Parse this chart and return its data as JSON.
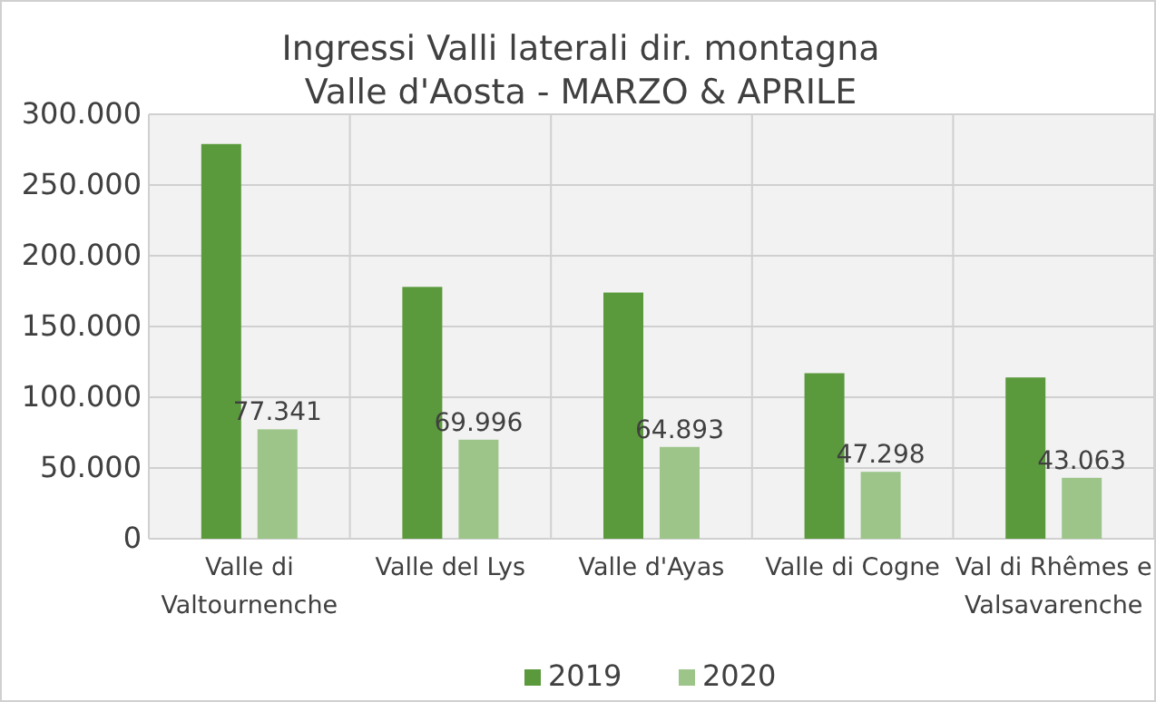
{
  "chart_data": {
    "type": "bar",
    "title": "Ingressi Valli laterali dir. montagna\nValle d'Aosta - MARZO & APRILE",
    "categories": [
      "Valle di\nValtournenche",
      "Valle del Lys",
      "Valle d'Ayas",
      "Valle di Cogne",
      "Val di Rhêmes e\nValsavarenche"
    ],
    "series": [
      {
        "name": "2019",
        "color": "#5b9a3c",
        "values": [
          279000,
          178000,
          174000,
          117000,
          114000
        ]
      },
      {
        "name": "2020",
        "color": "#9dc58a",
        "values": [
          77341,
          69996,
          64893,
          47298,
          43063
        ],
        "value_labels": [
          "77.341",
          "69.996",
          "64.893",
          "47.298",
          "43.063"
        ]
      }
    ],
    "ylim": [
      0,
      300000
    ],
    "yticks": [
      {
        "value": 0,
        "label": "0"
      },
      {
        "value": 50000,
        "label": "50.000"
      },
      {
        "value": 100000,
        "label": "100.000"
      },
      {
        "value": 150000,
        "label": "150.000"
      },
      {
        "value": 200000,
        "label": "200.000"
      },
      {
        "value": 250000,
        "label": "250.000"
      },
      {
        "value": 300000,
        "label": "300.000"
      }
    ],
    "grid": true,
    "legend": "bottom"
  }
}
